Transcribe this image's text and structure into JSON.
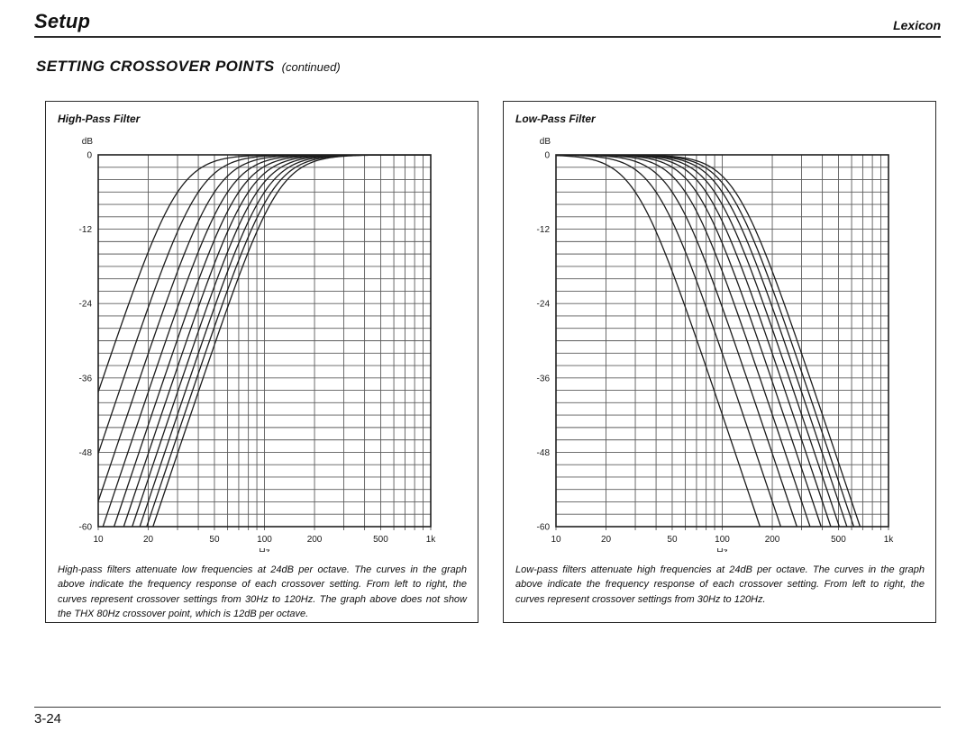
{
  "page": {
    "header": {
      "title": "Setup",
      "brand": "Lexicon"
    },
    "heading": {
      "title": "SETTING CROSSOVER POINTS",
      "continued": "(continued)"
    },
    "footer": {
      "page_number": "3-24"
    }
  },
  "figures": [
    {
      "id": "high-pass",
      "title": "High-Pass Filter",
      "caption": "High-pass filters attenuate low frequencies at 24dB per octave. The curves in the graph above indicate the frequency response of each crossover setting. From left to right, the curves represent crossover settings from 30Hz to 120Hz. The graph above does not show the THX 80Hz crossover point, which is 12dB per octave."
    },
    {
      "id": "low-pass",
      "title": "Low-Pass Filter",
      "caption": "Low-pass filters attenuate high frequencies at 24dB per octave. The curves in the graph above indicate the frequency response of each crossover setting. From left to right, the curves represent crossover settings from 30Hz to 120Hz."
    }
  ],
  "chart_data": [
    {
      "type": "line",
      "title": "High-Pass Filter",
      "filter_type": "high-pass",
      "slope_db_per_octave": 24,
      "xlabel": "Hz",
      "ylabel": "dB",
      "x_scale": "log",
      "xlim": [
        10,
        1000
      ],
      "ylim": [
        -60,
        0
      ],
      "x_ticks": [
        [
          10,
          "10"
        ],
        [
          20,
          "20"
        ],
        [
          50,
          "50"
        ],
        [
          100,
          "100"
        ],
        [
          200,
          "200"
        ],
        [
          500,
          "500"
        ],
        [
          1000,
          "1k"
        ]
      ],
      "y_ticks": [
        [
          0,
          "0"
        ],
        [
          -12,
          "-12"
        ],
        [
          -24,
          "-24"
        ],
        [
          -36,
          "-36"
        ],
        [
          -48,
          "-48"
        ],
        [
          -60,
          "-60"
        ]
      ],
      "grid": {
        "on": true,
        "y_step_db": 2,
        "x_minor_per_decade": [
          1,
          2,
          3,
          4,
          5,
          6,
          7,
          8,
          9
        ]
      },
      "legend": "none",
      "series": [
        {
          "name": "30Hz",
          "cutoff_hz": 30
        },
        {
          "name": "40Hz",
          "cutoff_hz": 40
        },
        {
          "name": "50Hz",
          "cutoff_hz": 50
        },
        {
          "name": "60Hz",
          "cutoff_hz": 60
        },
        {
          "name": "70Hz",
          "cutoff_hz": 70
        },
        {
          "name": "80Hz",
          "cutoff_hz": 80
        },
        {
          "name": "90Hz",
          "cutoff_hz": 90
        },
        {
          "name": "100Hz",
          "cutoff_hz": 100
        },
        {
          "name": "110Hz",
          "cutoff_hz": 110
        },
        {
          "name": "120Hz",
          "cutoff_hz": 120
        }
      ]
    },
    {
      "type": "line",
      "title": "Low-Pass Filter",
      "filter_type": "low-pass",
      "slope_db_per_octave": 24,
      "xlabel": "Hz",
      "ylabel": "dB",
      "x_scale": "log",
      "xlim": [
        10,
        1000
      ],
      "ylim": [
        -60,
        0
      ],
      "x_ticks": [
        [
          10,
          "10"
        ],
        [
          20,
          "20"
        ],
        [
          50,
          "50"
        ],
        [
          100,
          "100"
        ],
        [
          200,
          "200"
        ],
        [
          500,
          "500"
        ],
        [
          1000,
          "1k"
        ]
      ],
      "y_ticks": [
        [
          0,
          "0"
        ],
        [
          -12,
          "-12"
        ],
        [
          -24,
          "-24"
        ],
        [
          -36,
          "-36"
        ],
        [
          -48,
          "-48"
        ],
        [
          -60,
          "-60"
        ]
      ],
      "grid": {
        "on": true,
        "y_step_db": 2,
        "x_minor_per_decade": [
          1,
          2,
          3,
          4,
          5,
          6,
          7,
          8,
          9
        ]
      },
      "legend": "none",
      "series": [
        {
          "name": "30Hz",
          "cutoff_hz": 30
        },
        {
          "name": "40Hz",
          "cutoff_hz": 40
        },
        {
          "name": "50Hz",
          "cutoff_hz": 50
        },
        {
          "name": "60Hz",
          "cutoff_hz": 60
        },
        {
          "name": "70Hz",
          "cutoff_hz": 70
        },
        {
          "name": "80Hz",
          "cutoff_hz": 80
        },
        {
          "name": "90Hz",
          "cutoff_hz": 90
        },
        {
          "name": "100Hz",
          "cutoff_hz": 100
        },
        {
          "name": "110Hz",
          "cutoff_hz": 110
        },
        {
          "name": "120Hz",
          "cutoff_hz": 120
        }
      ]
    }
  ]
}
